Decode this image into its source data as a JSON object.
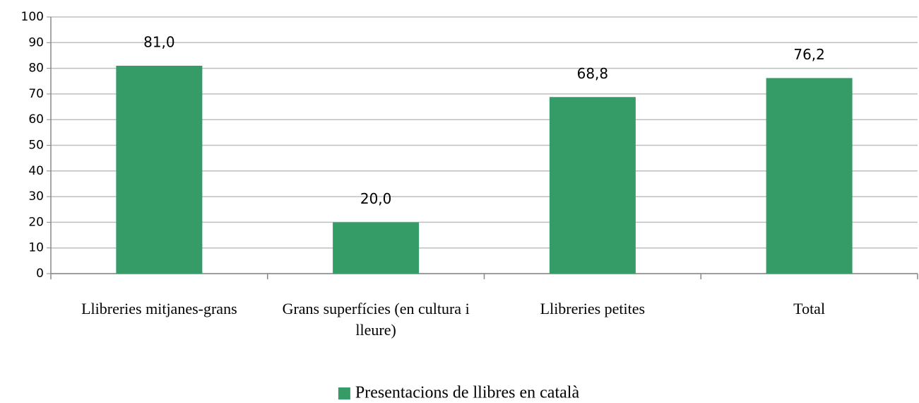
{
  "chart_data": {
    "type": "bar",
    "categories": [
      "Llibreries mitjanes-grans",
      "Grans superfícies (en cultura i lleure)",
      "Llibreries petites",
      "Total"
    ],
    "series": [
      {
        "name": "Presentacions de llibres en català",
        "color": "#359b67",
        "values": [
          81.0,
          20.0,
          68.8,
          76.2
        ],
        "value_labels": [
          "81,0",
          "20,0",
          "68,8",
          "76,2"
        ]
      }
    ],
    "ylim": [
      0,
      100
    ],
    "yticks": [
      0,
      10,
      20,
      30,
      40,
      50,
      60,
      70,
      80,
      90,
      100
    ],
    "grid": true,
    "legend": "bottom"
  }
}
